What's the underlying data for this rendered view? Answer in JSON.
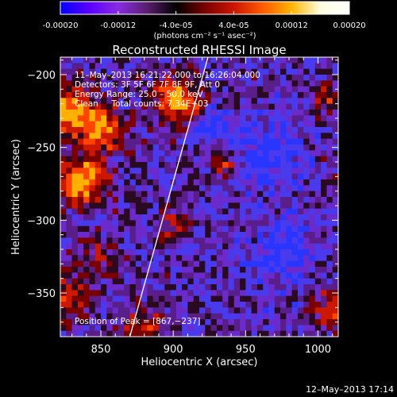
{
  "colorbar": {
    "tick_labels": [
      "-0.00020",
      "-0.00012",
      "-4.0e-05",
      "4.0e-05",
      "0.00012",
      "0.00020"
    ],
    "tick_values": [
      -0.0002,
      -0.00012,
      -4e-05,
      4e-05,
      0.00012,
      0.0002
    ],
    "unit_label": "(photons cm⁻² s⁻¹ asec⁻²)",
    "range": [
      -0.0002,
      0.0002
    ],
    "colors": [
      "#0000ff",
      "#5a00ff",
      "#8a2be2",
      "#5b1e6e",
      "#000000",
      "#7a0000",
      "#cc1500",
      "#ff5a00",
      "#ffb300",
      "#ffffe0",
      "#ffffff"
    ]
  },
  "chart_data": {
    "type": "heatmap",
    "title": "Reconstructed RHESSI Image",
    "xlabel": "Heliocentric X (arcsec)",
    "ylabel": "Heliocentric Y (arcsec)",
    "xlim": [
      822,
      1014
    ],
    "ylim": [
      -380,
      -188
    ],
    "x_ticks": [
      850,
      900,
      950,
      1000
    ],
    "y_ticks": [
      -200,
      -250,
      -300,
      -350
    ],
    "x_tick_labels": [
      "850",
      "900",
      "950",
      "1000"
    ],
    "y_tick_labels": [
      "−200",
      "−250",
      "−300",
      "−350"
    ],
    "info_lines": [
      "11–May–2013 16:21:22.000 to 16:26:04.000",
      "Detectors: 3F 5F 6F 7F 8F 9F, Att 0",
      "Energy Range: 25.0 – 50.0 keV",
      "Clean     Total counts: 7.34E+03"
    ],
    "peak_label": "Position of Peak = [867,−237]",
    "peak": [
      867,
      -237
    ],
    "limb_line": [
      [
        870,
        -380
      ],
      [
        924,
        -188
      ]
    ]
  },
  "footer": {
    "timestamp": "12–May–2013 17:14"
  }
}
